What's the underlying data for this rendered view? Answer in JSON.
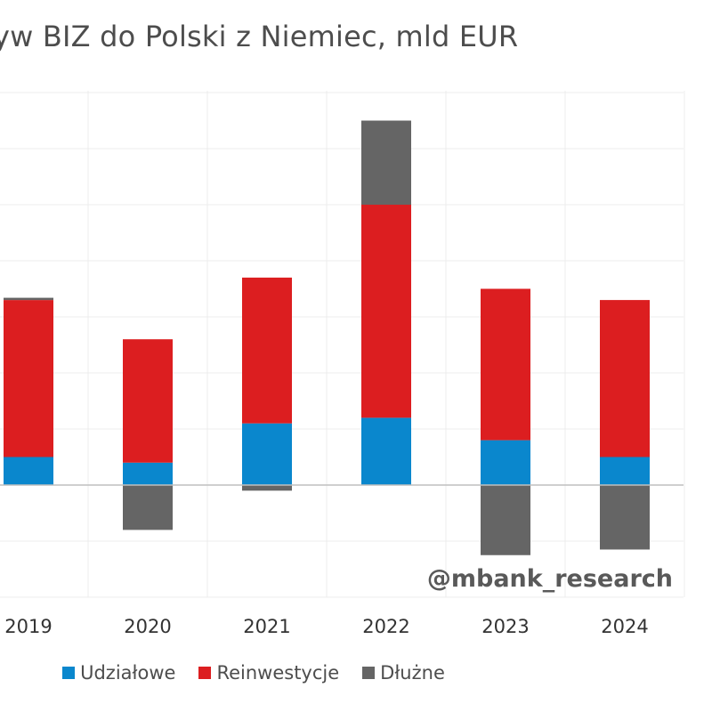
{
  "chart_data": {
    "type": "bar",
    "stacked": true,
    "title": "Napływ BIZ do Polski z Niemiec, mld EUR",
    "title_visible": "yw BIZ do Polski z Niemiec, mld EUR",
    "categories": [
      "2019",
      "2020",
      "2021",
      "2022",
      "2023",
      "2024"
    ],
    "series": [
      {
        "name": "Udziałowe",
        "color": "#0a87cd",
        "values": [
          0.5,
          0.4,
          1.1,
          1.2,
          0.8,
          0.5
        ]
      },
      {
        "name": "Reinwestycje",
        "color": "#dc1e20",
        "values": [
          2.8,
          2.2,
          2.6,
          3.8,
          2.7,
          2.8
        ]
      },
      {
        "name": "Dłużne",
        "color": "#656565",
        "values": [
          0.04,
          -0.8,
          -0.1,
          1.5,
          -1.25,
          -1.15
        ]
      }
    ],
    "ylim": [
      -2.0,
      7.0
    ],
    "grid": true,
    "legend_position": "bottom",
    "watermark": "@mbank_research"
  }
}
